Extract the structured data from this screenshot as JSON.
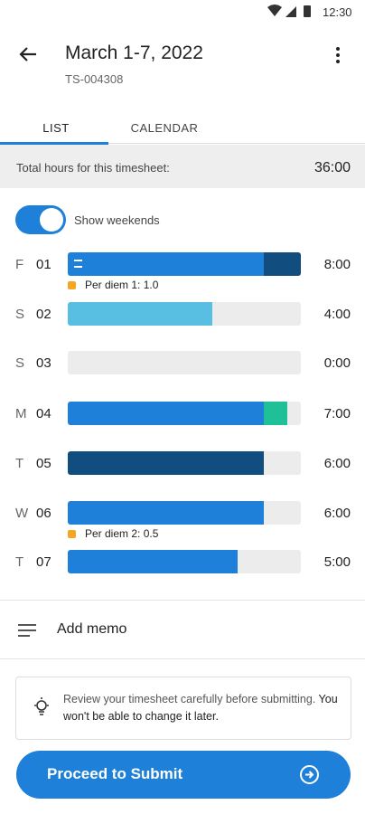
{
  "status_bar": {
    "time": "12:30"
  },
  "header": {
    "title": "March 1-7, 2022",
    "subtitle": "TS-004308"
  },
  "tabs": [
    "LIST",
    "CALENDAR"
  ],
  "summary": {
    "label": "Total hours for this timesheet:",
    "value": "36:00"
  },
  "toggle": {
    "label": "Show weekends",
    "on": true
  },
  "days": [
    {
      "weekday": "F",
      "date": "01",
      "hours": "8:00",
      "has_note": true,
      "segments": [
        {
          "percent": 84,
          "color": "#1e80d8"
        },
        {
          "percent": 16,
          "color": "#124d80"
        }
      ],
      "per_diem": "Per diem 1: 1.0"
    },
    {
      "weekday": "S",
      "date": "02",
      "hours": "4:00",
      "segments": [
        {
          "percent": 62,
          "color": "#58bfe2"
        }
      ]
    },
    {
      "weekday": "S",
      "date": "03",
      "hours": "0:00",
      "segments": []
    },
    {
      "weekday": "M",
      "date": "04",
      "hours": "7:00",
      "segments": [
        {
          "percent": 84,
          "color": "#1e80d8"
        },
        {
          "percent": 10,
          "color": "#1fbf98"
        }
      ]
    },
    {
      "weekday": "T",
      "date": "05",
      "hours": "6:00",
      "segments": [
        {
          "percent": 84,
          "color": "#124d80"
        }
      ]
    },
    {
      "weekday": "W",
      "date": "06",
      "hours": "6:00",
      "segments": [
        {
          "percent": 84,
          "color": "#1e80d8"
        }
      ],
      "per_diem": "Per diem 2: 0.5"
    },
    {
      "weekday": "T",
      "date": "07",
      "hours": "5:00",
      "segments": [
        {
          "percent": 73,
          "color": "#1e80d8"
        }
      ]
    }
  ],
  "memo": "Add memo",
  "notice": {
    "text": "Review your timesheet carefully before submitting.",
    "emphasis": "You won't be able to change it later."
  },
  "button": "Proceed to Submit"
}
